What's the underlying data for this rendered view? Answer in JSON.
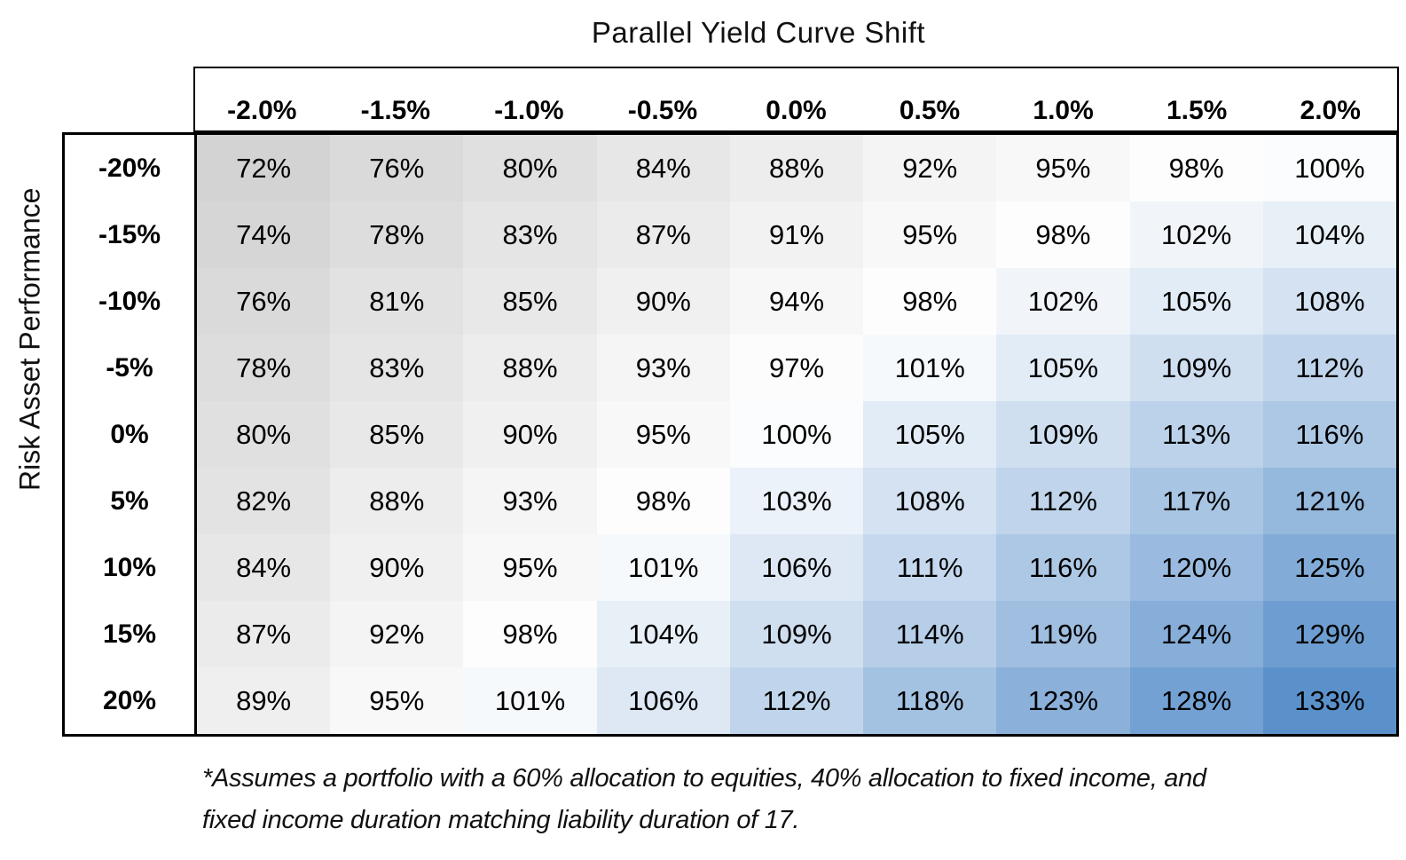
{
  "title": "Parallel Yield Curve Shift",
  "ylabel": "Risk Asset Performance",
  "footnote": {
    "line1": "*Assumes a portfolio with a 60% allocation to equities, 40% allocation to fixed income, and",
    "line2": "fixed income duration matching liability duration of 17."
  },
  "chart_data": {
    "type": "heatmap",
    "title": "Parallel Yield Curve Shift",
    "xlabel": "Parallel Yield Curve Shift",
    "ylabel": "Risk Asset Performance",
    "unit": "%",
    "columns": [
      "-2.0%",
      "-1.5%",
      "-1.0%",
      "-0.5%",
      "0.0%",
      "0.5%",
      "1.0%",
      "1.5%",
      "2.0%"
    ],
    "rows": [
      "-20%",
      "-15%",
      "-10%",
      "-5%",
      "0%",
      "5%",
      "10%",
      "15%",
      "20%"
    ],
    "values": [
      [
        72,
        76,
        80,
        84,
        88,
        92,
        95,
        98,
        100
      ],
      [
        74,
        78,
        83,
        87,
        91,
        95,
        98,
        102,
        104
      ],
      [
        76,
        81,
        85,
        90,
        94,
        98,
        102,
        105,
        108
      ],
      [
        78,
        83,
        88,
        93,
        97,
        101,
        105,
        109,
        112
      ],
      [
        80,
        85,
        90,
        95,
        100,
        105,
        109,
        113,
        116
      ],
      [
        82,
        88,
        93,
        98,
        103,
        108,
        112,
        117,
        121
      ],
      [
        84,
        90,
        95,
        101,
        106,
        111,
        116,
        120,
        125
      ],
      [
        87,
        92,
        98,
        104,
        109,
        114,
        119,
        124,
        129
      ],
      [
        89,
        95,
        101,
        106,
        112,
        118,
        123,
        128,
        133
      ]
    ],
    "color_scale": {
      "min_value": 72,
      "mid_value": 99,
      "max_value": 133,
      "min_color": "#D3D3D3",
      "mid_color": "#FFFFFF",
      "max_color": "#5B91CB"
    },
    "legend_position": "none",
    "grid": false
  }
}
